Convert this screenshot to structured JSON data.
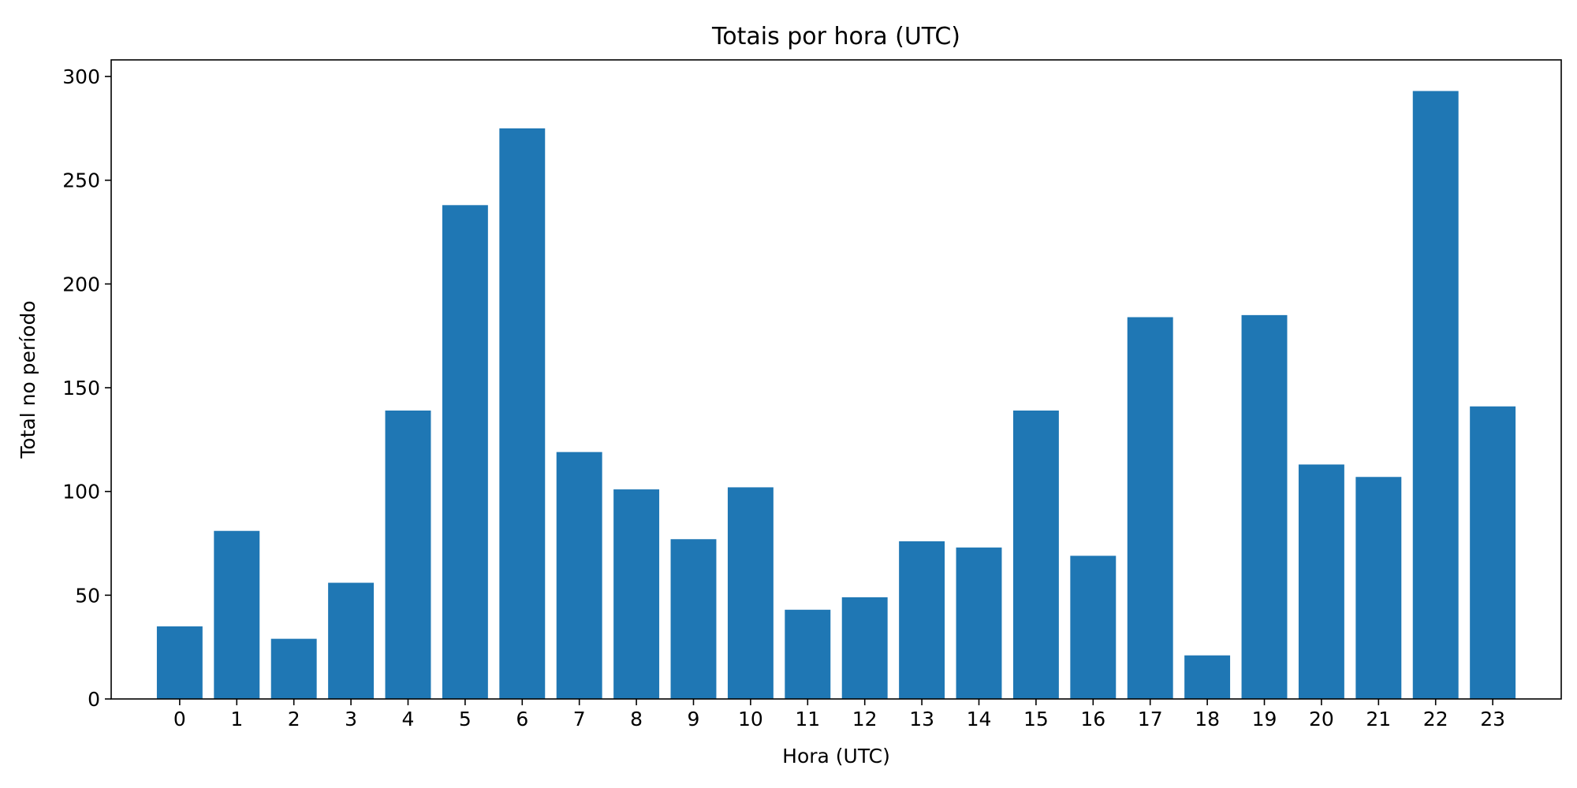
{
  "chart_data": {
    "type": "bar",
    "title": "Totais por hora (UTC)",
    "xlabel": "Hora (UTC)",
    "ylabel": "Total no período",
    "categories": [
      "0",
      "1",
      "2",
      "3",
      "4",
      "5",
      "6",
      "7",
      "8",
      "9",
      "10",
      "11",
      "12",
      "13",
      "14",
      "15",
      "16",
      "17",
      "18",
      "19",
      "20",
      "21",
      "22",
      "23"
    ],
    "values": [
      35,
      81,
      29,
      56,
      139,
      238,
      275,
      119,
      101,
      77,
      102,
      43,
      49,
      76,
      73,
      139,
      69,
      184,
      21,
      185,
      113,
      107,
      293,
      141
    ],
    "ylim": [
      0,
      308
    ],
    "yticks": [
      0,
      50,
      100,
      150,
      200,
      250,
      300
    ],
    "bar_color": "#1f77b4",
    "grid": false,
    "legend": "none"
  }
}
